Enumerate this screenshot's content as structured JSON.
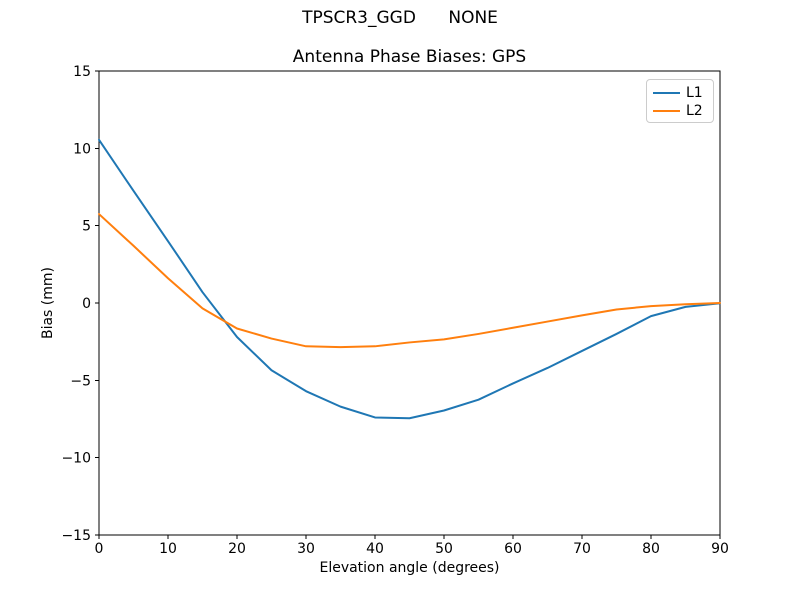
{
  "figure": {
    "suptitle": "TPSCR3_GGD      NONE"
  },
  "chart_data": {
    "type": "line",
    "title": "Antenna Phase Biases: GPS",
    "xlabel": "Elevation angle (degrees)",
    "ylabel": "Bias (mm)",
    "xlim": [
      0,
      90
    ],
    "ylim": [
      -15,
      15
    ],
    "xticks": [
      0,
      10,
      20,
      30,
      40,
      50,
      60,
      70,
      80,
      90
    ],
    "xticklabels": [
      "0",
      "10",
      "20",
      "30",
      "40",
      "50",
      "60",
      "70",
      "80",
      "90"
    ],
    "yticks": [
      -15,
      -10,
      -5,
      0,
      5,
      10,
      15
    ],
    "yticklabels": [
      "−15",
      "−10",
      "−5",
      "0",
      "5",
      "10",
      "15"
    ],
    "grid": false,
    "legend_position": "upper right",
    "x": [
      0,
      5,
      10,
      15,
      20,
      25,
      30,
      35,
      40,
      45,
      50,
      55,
      60,
      65,
      70,
      75,
      80,
      85,
      90
    ],
    "series": [
      {
        "name": "L1",
        "color": "#1f77b4",
        "values": [
          10.55,
          7.25,
          4.0,
          0.7,
          -2.2,
          -4.35,
          -5.7,
          -6.7,
          -7.4,
          -7.45,
          -6.95,
          -6.25,
          -5.2,
          -4.2,
          -3.1,
          -2.0,
          -0.85,
          -0.25,
          -0.02
        ]
      },
      {
        "name": "L2",
        "color": "#ff7f0e",
        "values": [
          5.75,
          3.7,
          1.6,
          -0.35,
          -1.65,
          -2.3,
          -2.8,
          -2.85,
          -2.8,
          -2.55,
          -2.35,
          -2.0,
          -1.6,
          -1.2,
          -0.8,
          -0.42,
          -0.2,
          -0.08,
          0.0
        ]
      }
    ]
  }
}
